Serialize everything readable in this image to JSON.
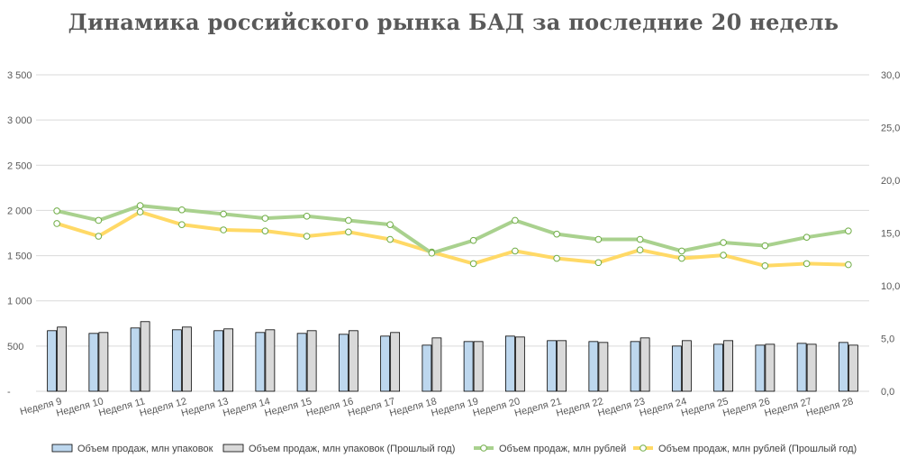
{
  "chart_data": {
    "type": "bar",
    "title": "Динамика российского рынка БАД за последние 20 недель",
    "categories": [
      "Неделя 9",
      "Неделя 10",
      "Неделя 11",
      "Неделя 12",
      "Неделя 13",
      "Неделя 14",
      "Неделя 15",
      "Неделя 16",
      "Неделя 17",
      "Неделя 18",
      "Неделя 19",
      "Неделя 20",
      "Неделя 21",
      "Неделя 22",
      "Неделя 23",
      "Неделя 24",
      "Неделя 25",
      "Неделя 26",
      "Неделя 27",
      "Неделя 28"
    ],
    "y_left": {
      "ylim": [
        0,
        3500
      ],
      "ticks": [
        "-",
        "500",
        "1 000",
        "1 500",
        "2 000",
        "2 500",
        "3 000",
        "3 500"
      ]
    },
    "y_right": {
      "ylim": [
        0,
        30
      ],
      "ticks": [
        "0,0",
        "5,0",
        "10,0",
        "15,0",
        "20,0",
        "25,0",
        "30,0"
      ]
    },
    "series": [
      {
        "name": "Объем продаж, млн упаковок",
        "kind": "bar",
        "axis": "left",
        "color": "#bdd7ee",
        "values": [
          670,
          640,
          700,
          680,
          670,
          650,
          640,
          630,
          610,
          510,
          550,
          610,
          560,
          550,
          550,
          500,
          520,
          510,
          530,
          540
        ]
      },
      {
        "name": "Объем продаж, млн упаковок (Прошлый год)",
        "kind": "bar",
        "axis": "left",
        "color": "#d9d9d9",
        "values": [
          710,
          650,
          770,
          710,
          690,
          680,
          670,
          670,
          650,
          590,
          550,
          600,
          560,
          540,
          590,
          560,
          560,
          520,
          520,
          510
        ]
      },
      {
        "name": "Объем продаж, млн рублей",
        "kind": "line",
        "axis": "right",
        "color": "#a9d18e",
        "values": [
          17.1,
          16.2,
          17.6,
          17.2,
          16.8,
          16.4,
          16.6,
          16.2,
          15.8,
          13.1,
          14.3,
          16.2,
          14.9,
          14.4,
          14.4,
          13.3,
          14.1,
          13.8,
          14.6,
          15.2
        ]
      },
      {
        "name": "Объем продаж, млн рублей (Прошлый год)",
        "kind": "line",
        "axis": "right",
        "color": "#ffd966",
        "values": [
          15.9,
          14.7,
          17.0,
          15.8,
          15.3,
          15.2,
          14.7,
          15.1,
          14.4,
          13.2,
          12.1,
          13.3,
          12.6,
          12.2,
          13.4,
          12.6,
          12.9,
          11.9,
          12.1,
          12.0
        ]
      }
    ],
    "legend_position": "bottom"
  }
}
